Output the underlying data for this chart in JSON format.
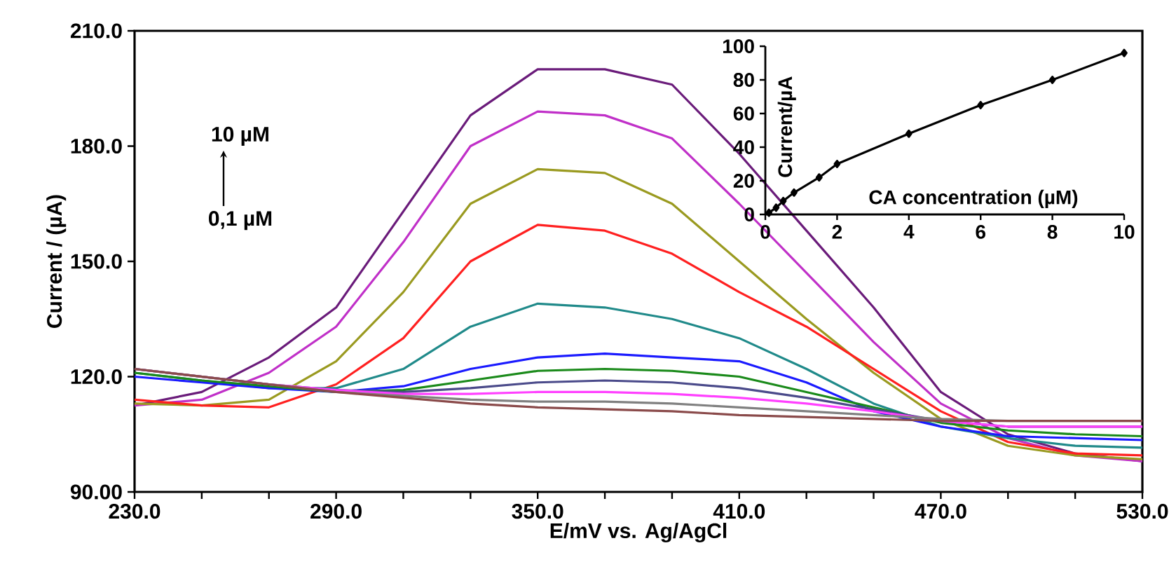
{
  "chart_data": [
    {
      "type": "line",
      "xlabel": "E/mV vs. Ag/AgCl",
      "ylabel": "Current / (µA)",
      "xlim": [
        230,
        530
      ],
      "ylim": [
        90,
        210
      ],
      "xticks": [
        {
          "value": 230,
          "label": "230.0"
        },
        {
          "value": 250,
          "label": null
        },
        {
          "value": 270,
          "label": null
        },
        {
          "value": 290,
          "label": "290.0"
        },
        {
          "value": 310,
          "label": null
        },
        {
          "value": 330,
          "label": null
        },
        {
          "value": 350,
          "label": "350.0"
        },
        {
          "value": 370,
          "label": null
        },
        {
          "value": 390,
          "label": null
        },
        {
          "value": 410,
          "label": "410.0"
        },
        {
          "value": 430,
          "label": null
        },
        {
          "value": 450,
          "label": null
        },
        {
          "value": 470,
          "label": "470.0"
        },
        {
          "value": 490,
          "label": null
        },
        {
          "value": 510,
          "label": null
        },
        {
          "value": 530,
          "label": "530.0"
        }
      ],
      "yticks": [
        {
          "value": 90,
          "label": "90.00"
        },
        {
          "value": 120,
          "label": "120.0"
        },
        {
          "value": 150,
          "label": "150.0"
        },
        {
          "value": 180,
          "label": "180.0"
        },
        {
          "value": 210,
          "label": "210.0"
        }
      ],
      "annotations": [
        "10 µM",
        "0,1 µM"
      ],
      "x": [
        230,
        250,
        270,
        290,
        310,
        330,
        350,
        370,
        390,
        410,
        430,
        450,
        470,
        490,
        510,
        530
      ],
      "series": [
        {
          "color": "#6a1b7a",
          "values": [
            112.5,
            116,
            125,
            138,
            163,
            188,
            200,
            200,
            196,
            178,
            158,
            138,
            116,
            105,
            100,
            98
          ]
        },
        {
          "color": "#c030c8",
          "values": [
            112.5,
            114,
            121,
            133,
            155,
            180,
            189,
            188,
            182,
            165,
            147,
            129,
            113,
            104,
            99.5,
            98
          ]
        },
        {
          "color": "#9a9a20",
          "values": [
            113,
            112.5,
            114,
            124,
            142,
            165,
            174,
            173,
            165,
            150,
            135,
            121,
            109,
            102,
            99.5,
            98.5
          ]
        },
        {
          "color": "#ff2020",
          "values": [
            114,
            112.5,
            112,
            118,
            130,
            150,
            159.5,
            158,
            152,
            142,
            133,
            122,
            111,
            103,
            100,
            99.5
          ]
        },
        {
          "color": "#208a8a",
          "values": [
            121,
            119,
            117,
            117,
            122,
            133,
            139,
            138,
            135,
            130,
            122,
            113,
            107,
            104,
            102,
            101.5
          ]
        },
        {
          "color": "#1a1aff",
          "values": [
            120,
            118.5,
            117,
            116,
            117.5,
            122,
            125,
            126,
            125,
            124,
            118.5,
            111,
            107,
            104.5,
            104,
            103.5
          ]
        },
        {
          "color": "#1a8a1a",
          "values": [
            121,
            119,
            117.5,
            116,
            116.5,
            119,
            121.5,
            122,
            121.5,
            120,
            116,
            112,
            108,
            106,
            105,
            104.5
          ]
        },
        {
          "color": "#4a4a8a",
          "values": [
            122,
            120,
            118,
            116.5,
            116,
            117,
            118.5,
            119,
            118.5,
            117,
            114.5,
            111.5,
            108.5,
            107,
            107,
            107
          ]
        },
        {
          "color": "#ff40ff",
          "values": [
            122,
            120,
            118,
            116.5,
            115.5,
            115.5,
            116,
            116,
            115.5,
            114.5,
            113,
            111,
            108.5,
            107,
            107,
            107
          ]
        },
        {
          "color": "#808080",
          "values": [
            122,
            120,
            118,
            116,
            115,
            114,
            113.5,
            113.5,
            113,
            112,
            111,
            110,
            109,
            108.5,
            108.5,
            108.5
          ]
        },
        {
          "color": "#8a4a4a",
          "values": [
            122,
            120,
            118,
            116,
            114.5,
            113,
            112,
            111.5,
            111,
            110,
            109.5,
            109,
            108.5,
            108.5,
            108.5,
            108.5
          ]
        }
      ]
    },
    {
      "type": "line",
      "xlabel": "CA concentration (µM)",
      "ylabel": "Current/µA",
      "xlim": [
        0,
        10
      ],
      "ylim": [
        0,
        100
      ],
      "xticks": [
        0,
        2,
        4,
        6,
        8,
        10
      ],
      "yticks": [
        0,
        20,
        40,
        60,
        80,
        100
      ],
      "marker": "diamond",
      "color": "#000000",
      "x": [
        0.1,
        0.3,
        0.5,
        0.8,
        1.5,
        2,
        4,
        6,
        8,
        10
      ],
      "values": [
        1,
        4,
        8,
        13,
        22,
        30,
        48,
        65,
        80,
        96
      ]
    }
  ]
}
